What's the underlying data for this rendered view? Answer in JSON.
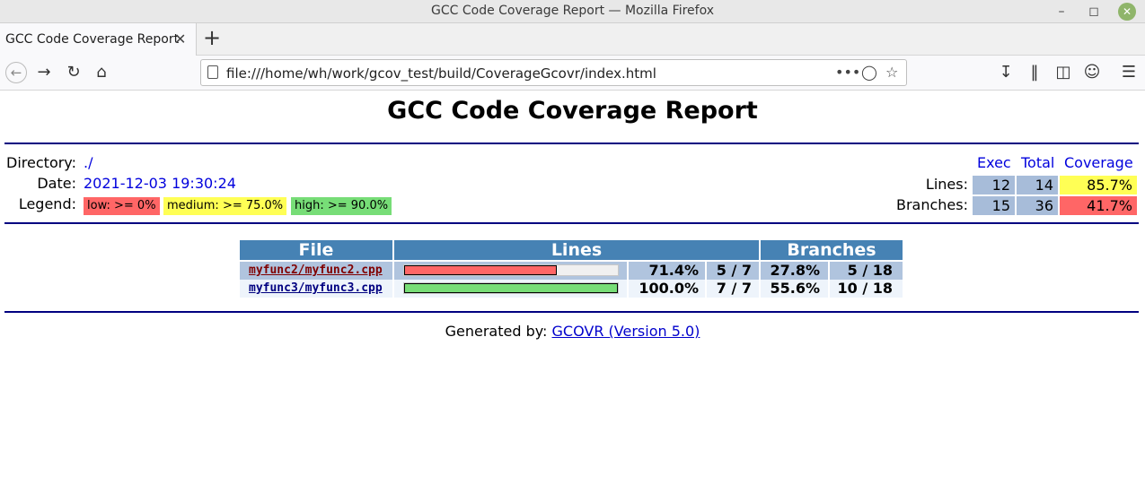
{
  "window": {
    "title": "GCC Code Coverage Report — Mozilla Firefox"
  },
  "tab": {
    "title": "GCC Code Coverage Report"
  },
  "url": "file:///home/wh/work/gcov_test/build/CoverageGcovr/index.html",
  "report": {
    "title": "GCC Code Coverage Report",
    "directory_label": "Directory:",
    "directory": "./",
    "date_label": "Date:",
    "date": "2021-12-03 19:30:24",
    "legend_label": "Legend:",
    "legend": {
      "low": "low: >= 0%",
      "medium": "medium: >= 75.0%",
      "high": "high: >= 90.0%"
    },
    "summary": {
      "headers": {
        "exec": "Exec",
        "total": "Total",
        "coverage": "Coverage"
      },
      "lines": {
        "label": "Lines:",
        "exec": "12",
        "total": "14",
        "coverage": "85.7%"
      },
      "branches": {
        "label": "Branches:",
        "exec": "15",
        "total": "36",
        "coverage": "41.7%"
      }
    },
    "table": {
      "headers": {
        "file": "File",
        "lines": "Lines",
        "branches": "Branches"
      },
      "rows": [
        {
          "file": "myfunc2/myfunc2.cpp",
          "line_pct": "71.4%",
          "line_frac": 0.714,
          "lines": "5 / 7",
          "branch_pct": "27.8%",
          "branches": "5 / 18"
        },
        {
          "file": "myfunc3/myfunc3.cpp",
          "line_pct": "100.0%",
          "line_frac": 1.0,
          "lines": "7 / 7",
          "branch_pct": "55.6%",
          "branches": "10 / 18"
        }
      ]
    },
    "footer": {
      "prefix": "Generated by:",
      "link": "GCOVR (Version 5.0)"
    }
  },
  "colors": {
    "low": "#ff6666",
    "medium": "#ffff55",
    "high": "#77dd77",
    "header": "#4682b4",
    "rule": "#000080"
  }
}
